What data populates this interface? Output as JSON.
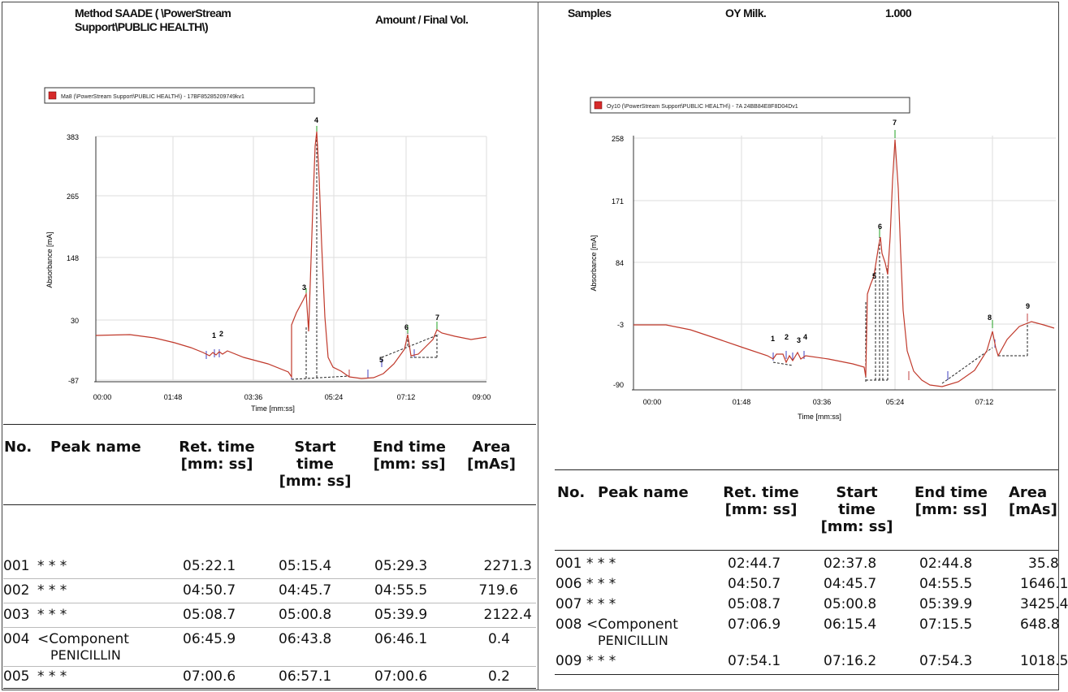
{
  "left_panel": {
    "header": {
      "method": "Method SAADE ( \\PowerStream\nSupport\\PUBLIC HEALTH\\)",
      "amount_label": "Amount / Final Vol."
    },
    "chart": {
      "legend": "Ma8 (\\PowerStream Support\\PUBLIC HEALTH\\) - 17BF85285209749kv1",
      "ylabel": "Absorbance [mA]",
      "xlabel": "Time [mm:ss]",
      "y_ticks": [
        "383",
        "265",
        "148",
        "30",
        "-87"
      ],
      "x_ticks": [
        "00:00",
        "01:48",
        "03:36",
        "05:24",
        "07:12",
        "09:00"
      ],
      "peak_labels": [
        "1",
        "2",
        "3",
        "4",
        "5",
        "6",
        "7"
      ]
    },
    "table": {
      "headers": [
        "No.",
        "Peak name",
        "Ret. time\n[mm: ss]",
        "Start\ntime\n[mm: ss]",
        "End time\n[mm: ss]",
        "Area\n[mAs]"
      ],
      "rows": [
        {
          "no": "001",
          "name": "* * *",
          "name2": "",
          "ret": "05:22.1",
          "start": "05:15.4",
          "end": "05:29.3",
          "area": "2271.3"
        },
        {
          "no": "002",
          "name": "* * *",
          "name2": "",
          "ret": "04:50.7",
          "start": "04:45.7",
          "end": "04:55.5",
          "area": "719.6"
        },
        {
          "no": "003",
          "name": "* * *",
          "name2": "",
          "ret": "05:08.7",
          "start": "05:00.8",
          "end": "05:39.9",
          "area": "2122.4"
        },
        {
          "no": "004",
          "name": "<Component",
          "name2": "PENICILLIN",
          "ret": "06:45.9",
          "start": "06:43.8",
          "end": "06:46.1",
          "area": "0.4"
        },
        {
          "no": "005",
          "name": "* * *",
          "name2": "",
          "ret": "07:00.6",
          "start": "06:57.1",
          "end": "07:00.6",
          "area": "0.2"
        }
      ]
    }
  },
  "right_panel": {
    "header": {
      "samples_label": "Samples",
      "sample_name": "OY Milk.",
      "value": "1.000"
    },
    "chart": {
      "legend": "Oy10 (\\PowerStream Support\\PUBLIC HEALTH\\) - 7A 24BB84E8F8D04Dv1",
      "ylabel": "Absorbance [mA]",
      "xlabel": "Time [mm:ss]",
      "y_ticks": [
        "258",
        "171",
        "84",
        "-3",
        "-90"
      ],
      "x_ticks": [
        "00:00",
        "01:48",
        "03:36",
        "05:24",
        "07:12"
      ],
      "peak_labels": [
        "1",
        "2",
        "3",
        "4",
        "5",
        "6",
        "7",
        "8",
        "9"
      ]
    },
    "table": {
      "headers": [
        "No.",
        "Peak name",
        "Ret. time\n[mm: ss]",
        "Start\ntime\n[mm: ss]",
        "End time\n[mm: ss]",
        "Area\n[mAs]"
      ],
      "rows": [
        {
          "no": "001",
          "name": "* * *",
          "name2": "",
          "ret": "02:44.7",
          "start": "02:37.8",
          "end": "02:44.8",
          "area": "35.8"
        },
        {
          "no": "006",
          "name": "* * *",
          "name2": "",
          "ret": "04:50.7",
          "start": "04:45.7",
          "end": "04:55.5",
          "area": "1646.1"
        },
        {
          "no": "007",
          "name": "* * *",
          "name2": "",
          "ret": "05:08.7",
          "start": "05:00.8",
          "end": "05:39.9",
          "area": "3425.4"
        },
        {
          "no": "008",
          "name": "<Component",
          "name2": "PENICILLIN",
          "ret": "07:06.9",
          "start": "06:15.4",
          "end": "07:15.5",
          "area": "648.8"
        },
        {
          "no": "009",
          "name": "* * *",
          "name2": "",
          "ret": "07:54.1",
          "start": "07:16.2",
          "end": "07:54.3",
          "area": "1018.5"
        }
      ]
    }
  }
}
